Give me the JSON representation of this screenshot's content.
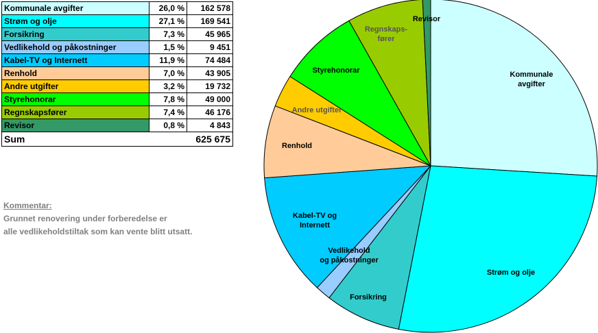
{
  "table": {
    "rows": [
      {
        "label": "Kommunale avgifter",
        "pct": "26,0 %",
        "amount": "162 578",
        "color": "#CCFFFF"
      },
      {
        "label": "Strøm og olje",
        "pct": "27,1 %",
        "amount": "169 541",
        "color": "#00FFFF"
      },
      {
        "label": "Forsikring",
        "pct": "7,3 %",
        "amount": "45 965",
        "color": "#33CCCC"
      },
      {
        "label": "Vedlikehold og påkostninger",
        "pct": "1,5 %",
        "amount": "9 451",
        "color": "#99CCFF"
      },
      {
        "label": "Kabel-TV og Internett",
        "pct": "11,9 %",
        "amount": "74 484",
        "color": "#00CCFF"
      },
      {
        "label": "Renhold",
        "pct": "7,0 %",
        "amount": "43 905",
        "color": "#FFCC99"
      },
      {
        "label": "Andre utgifter",
        "pct": "3,2 %",
        "amount": "19 732",
        "color": "#FFCC00"
      },
      {
        "label": "Styrehonorar",
        "pct": "7,8 %",
        "amount": "49 000",
        "color": "#00FF00"
      },
      {
        "label": "Regnskapsfører",
        "pct": "7,4 %",
        "amount": "46 176",
        "color": "#99CC00"
      },
      {
        "label": "Revisor",
        "pct": "0,8 %",
        "amount": "4 843",
        "color": "#339966"
      }
    ],
    "sum_label": "Sum",
    "sum_value": "625 675"
  },
  "comment": {
    "title": "Kommentar:",
    "lines": [
      "Grunnet renovering under forberedelse er",
      "alle vedlikeholdstiltak som kan vente blitt utsatt."
    ]
  },
  "chart_data": {
    "type": "pie",
    "slices": [
      {
        "label": "Kommunale avgifter",
        "value": 162578,
        "color": "#CCFFFF",
        "label_lines": [
          "Kommunale",
          "avgifter"
        ],
        "label_color": "#000000"
      },
      {
        "label": "Strøm og olje",
        "value": 169541,
        "color": "#00FFFF",
        "label_lines": [
          "Strøm og olje"
        ],
        "label_color": "#000000"
      },
      {
        "label": "Forsikring",
        "value": 45965,
        "color": "#33CCCC",
        "label_lines": [
          "Forsikring"
        ],
        "label_color": "#000000"
      },
      {
        "label": "Vedlikehold og påkostninger",
        "value": 9451,
        "color": "#99CCFF",
        "label_lines": [
          "Vedlikehold",
          "og påkostninger"
        ],
        "label_color": "#000000"
      },
      {
        "label": "Kabel-TV og Internett",
        "value": 74484,
        "color": "#00CCFF",
        "label_lines": [
          "Kabel-TV og",
          "Internett"
        ],
        "label_color": "#000000"
      },
      {
        "label": "Renhold",
        "value": 43905,
        "color": "#FFCC99",
        "label_lines": [
          "Renhold"
        ],
        "label_color": "#000000"
      },
      {
        "label": "Andre utgifter",
        "value": 19732,
        "color": "#FFCC00",
        "label_lines": [
          "Andre utgifter"
        ],
        "label_color": "#555555"
      },
      {
        "label": "Styrehonorar",
        "value": 49000,
        "color": "#00FF00",
        "label_lines": [
          "Styrehonorar"
        ],
        "label_color": "#000000"
      },
      {
        "label": "Regnskapsfører",
        "value": 46176,
        "color": "#99CC00",
        "label_lines": [
          "Regnskaps-",
          "fører"
        ],
        "label_color": "#555555"
      },
      {
        "label": "Revisor",
        "value": 4843,
        "color": "#339966",
        "label_lines": [
          "Revisor"
        ],
        "label_color": "#000000"
      }
    ],
    "start": "12 o'clock",
    "direction": "clockwise",
    "legend": "table at top-left"
  }
}
